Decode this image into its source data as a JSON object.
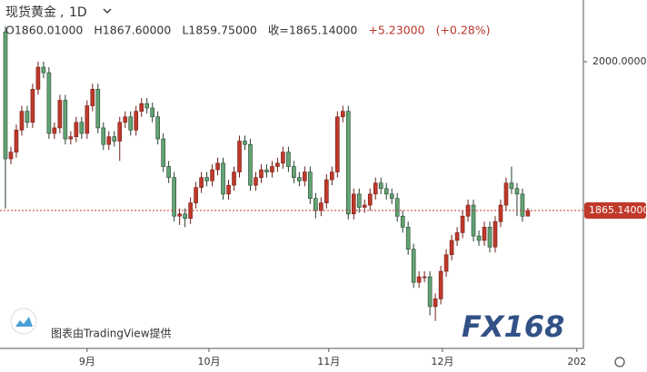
{
  "chart_data": {
    "type": "candlestick",
    "symbol": "现货黄金",
    "interval": "1D",
    "quote": [
      {
        "value": 1860.01,
        "label": "O1860.01000"
      },
      {
        "value": 1867.6,
        "label": "H1867.60000"
      },
      {
        "value": 1859.75,
        "label": "L1859.75000"
      },
      {
        "value": 1865.14,
        "label": "收=1865.14000"
      },
      {
        "value": 5.23,
        "label": "+5.23000"
      },
      {
        "value": 0.28,
        "label": "(+0.28%)"
      }
    ],
    "last_price": {
      "value": 1865.14,
      "label": "1865.14000"
    },
    "attribution": "图表由TradingView提供",
    "watermark": "FX168",
    "up_color": "#c0392b",
    "down_color": "#62a574",
    "open": [
      2027,
      1912,
      1918,
      1938,
      1955,
      1945,
      1975,
      1995,
      1990,
      1935,
      1940,
      1965,
      1930,
      1932,
      1945,
      1935,
      1960,
      1975,
      1940,
      1925,
      1932,
      1928,
      1945,
      1950,
      1938,
      1955,
      1962,
      1958,
      1950,
      1930,
      1905,
      1895,
      1860,
      1862,
      1858,
      1872,
      1886,
      1895,
      1892,
      1902,
      1908,
      1880,
      1888,
      1900,
      1928,
      1925,
      1888,
      1895,
      1902,
      1900,
      1905,
      1908,
      1918,
      1905,
      1895,
      1892,
      1900,
      1876,
      1865,
      1872,
      1893,
      1900,
      1950,
      1955,
      1862,
      1880,
      1868,
      1870,
      1880,
      1890,
      1885,
      1880,
      1876,
      1860,
      1850,
      1830,
      1800,
      1805,
      1805,
      1778,
      1785,
      1810,
      1825,
      1838,
      1845,
      1860,
      1870,
      1842,
      1838,
      1850,
      1832,
      1855,
      1870,
      1890,
      1885,
      1880,
      1860.01
    ],
    "high": [
      2032,
      1923,
      1943,
      1960,
      1960,
      1980,
      2000,
      2000,
      1995,
      1945,
      1970,
      1970,
      1937,
      1950,
      1950,
      1965,
      1980,
      1980,
      1945,
      1937,
      1937,
      1950,
      1955,
      1955,
      1960,
      1967,
      1967,
      1963,
      1955,
      1935,
      1910,
      1900,
      1867,
      1867,
      1877,
      1891,
      1900,
      1900,
      1907,
      1913,
      1913,
      1893,
      1905,
      1933,
      1933,
      1930,
      1900,
      1907,
      1907,
      1910,
      1913,
      1923,
      1923,
      1910,
      1900,
      1905,
      1905,
      1881,
      1877,
      1898,
      1905,
      1955,
      1960,
      1960,
      1885,
      1885,
      1875,
      1885,
      1895,
      1895,
      1890,
      1885,
      1881,
      1865,
      1855,
      1835,
      1810,
      1810,
      1810,
      1790,
      1815,
      1830,
      1843,
      1850,
      1865,
      1875,
      1875,
      1847,
      1855,
      1855,
      1860,
      1875,
      1895,
      1905,
      1890,
      1885,
      1867.6
    ],
    "low": [
      1867,
      1907,
      1913,
      1933,
      1940,
      1940,
      1970,
      1985,
      1930,
      1930,
      1935,
      1925,
      1925,
      1927,
      1930,
      1930,
      1955,
      1935,
      1920,
      1920,
      1923,
      1910,
      1940,
      1933,
      1933,
      1950,
      1953,
      1945,
      1925,
      1900,
      1890,
      1855,
      1852,
      1850,
      1853,
      1867,
      1881,
      1887,
      1887,
      1897,
      1875,
      1875,
      1883,
      1895,
      1920,
      1883,
      1883,
      1890,
      1895,
      1895,
      1900,
      1903,
      1900,
      1890,
      1887,
      1887,
      1871,
      1858,
      1860,
      1867,
      1888,
      1895,
      1945,
      1857,
      1857,
      1863,
      1863,
      1865,
      1875,
      1880,
      1875,
      1871,
      1855,
      1845,
      1825,
      1795,
      1795,
      1800,
      1770,
      1765,
      1780,
      1805,
      1820,
      1833,
      1840,
      1855,
      1837,
      1833,
      1833,
      1827,
      1827,
      1850,
      1865,
      1880,
      1860,
      1855,
      1859.75
    ],
    "close": [
      1912,
      1918,
      1938,
      1955,
      1945,
      1975,
      1995,
      1990,
      1935,
      1940,
      1965,
      1930,
      1932,
      1945,
      1935,
      1960,
      1975,
      1940,
      1925,
      1932,
      1928,
      1945,
      1950,
      1938,
      1955,
      1962,
      1958,
      1950,
      1930,
      1905,
      1895,
      1860,
      1862,
      1858,
      1872,
      1886,
      1895,
      1892,
      1902,
      1908,
      1880,
      1888,
      1900,
      1928,
      1925,
      1888,
      1895,
      1902,
      1900,
      1905,
      1908,
      1918,
      1905,
      1895,
      1892,
      1900,
      1876,
      1865,
      1872,
      1893,
      1900,
      1950,
      1955,
      1862,
      1880,
      1868,
      1870,
      1880,
      1890,
      1885,
      1880,
      1876,
      1860,
      1850,
      1830,
      1800,
      1805,
      1805,
      1778,
      1785,
      1810,
      1825,
      1838,
      1845,
      1860,
      1870,
      1842,
      1838,
      1850,
      1832,
      1855,
      1870,
      1890,
      1885,
      1880,
      1859.91,
      1865.14
    ],
    "xlim": [
      -1,
      106.2
    ],
    "xticks": [
      {
        "value": 15,
        "label": "9月"
      },
      {
        "value": 37.4,
        "label": "10月"
      },
      {
        "value": 59.4,
        "label": "11月"
      },
      {
        "value": 80.3,
        "label": "12月"
      },
      {
        "value": 105,
        "label": "202"
      }
    ],
    "ylim": [
      1740.1,
      2055.9
    ],
    "yticks": [
      {
        "value": 2000,
        "label": "2000.00000"
      }
    ]
  }
}
